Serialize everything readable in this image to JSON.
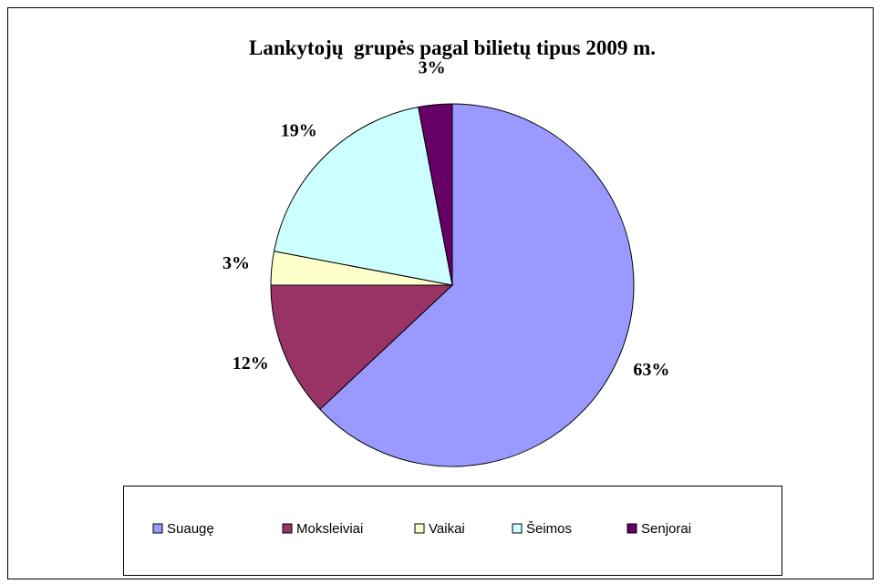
{
  "chart_data": {
    "type": "pie",
    "title": "Lankytojų  grupės pagal bilietų tipus 2009 m.",
    "categories": [
      "Suaugę",
      "Moksleiviai",
      "Vaikai",
      "Šeimos",
      "Senjorai"
    ],
    "values": [
      63,
      12,
      3,
      19,
      3
    ],
    "value_labels": [
      "63%",
      "12%",
      "3%",
      "19%",
      "3%"
    ],
    "colors": [
      "#9999ff",
      "#993366",
      "#ffffcc",
      "#ccffff",
      "#660066"
    ],
    "legend": "bottom"
  }
}
